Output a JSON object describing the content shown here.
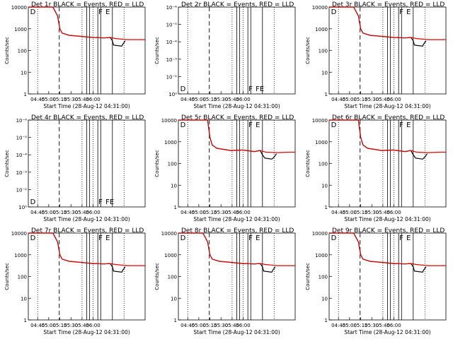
{
  "chart_data": [
    {
      "type": "line",
      "title": "Det 1r BLACK = Events, RED = LLD",
      "scale": "log",
      "ylim": [
        1,
        10000
      ],
      "ylabel": "Counts/sec",
      "xlabel": "Start Time (28-Aug-12 04:31:00)",
      "xticks": [
        "04:45",
        "05:00",
        "05:15",
        "05:30",
        "05:45",
        "06:00"
      ],
      "markers": [
        "D",
        "F",
        "E"
      ],
      "series": [
        {
          "name": "Events",
          "color": "#000000",
          "profile": "high"
        },
        {
          "name": "LLD",
          "color": "#e00000",
          "profile": "high"
        }
      ]
    },
    {
      "type": "line",
      "title": "Det 2r BLACK = Events, RED = LLD",
      "scale": "tiny",
      "ylim": [
        0,
        1e-06
      ],
      "ylabel": "Counts/sec",
      "xlabel": "Start Time (28-Aug-12 04:31:00)",
      "xticks": [
        "04:45",
        "05:00",
        "05:15",
        "05:30",
        "05:45",
        "06:00"
      ],
      "markers": [
        "D",
        "F",
        "F",
        "E"
      ],
      "series": []
    },
    {
      "type": "line",
      "title": "Det 3r BLACK = Events, RED = LLD",
      "scale": "log",
      "ylim": [
        1,
        10000
      ],
      "ylabel": "Counts/sec",
      "xlabel": "Start Time (28-Aug-12 04:31:00)",
      "xticks": [
        "04:45",
        "05:00",
        "05:15",
        "05:30",
        "05:45",
        "06:00"
      ],
      "markers": [
        "D",
        "F",
        "E"
      ],
      "series": [
        {
          "name": "Events",
          "color": "#000000",
          "profile": "high"
        },
        {
          "name": "LLD",
          "color": "#e00000",
          "profile": "high"
        }
      ]
    },
    {
      "type": "line",
      "title": "Det 4r BLACK = Events, RED = LLD",
      "scale": "tiny",
      "ylim": [
        0,
        1e-06
      ],
      "ylabel": "Counts/sec",
      "xlabel": "Start Time (28-Aug-12 04:31:00)",
      "xticks": [
        "04:45",
        "05:00",
        "05:15",
        "05:30",
        "05:45",
        "06:00"
      ],
      "markers": [
        "D",
        "F",
        "F",
        "E"
      ],
      "series": []
    },
    {
      "type": "line",
      "title": "Det 5r BLACK = Events, RED = LLD",
      "scale": "log",
      "ylim": [
        1,
        10000
      ],
      "ylabel": "Counts/sec",
      "xlabel": "Start Time (28-Aug-12 04:31:00)",
      "xticks": [
        "04:45",
        "05:00",
        "05:15",
        "05:30",
        "05:45",
        "06:00"
      ],
      "markers": [
        "D",
        "F",
        "E"
      ],
      "series": [
        {
          "name": "Events",
          "color": "#000000",
          "profile": "late"
        },
        {
          "name": "LLD",
          "color": "#e00000",
          "profile": "late"
        }
      ]
    },
    {
      "type": "line",
      "title": "Det 6r BLACK = Events, RED = LLD",
      "scale": "log",
      "ylim": [
        1,
        10000
      ],
      "ylabel": "Counts/sec",
      "xlabel": "Start Time (28-Aug-12 04:31:00)",
      "xticks": [
        "04:45",
        "05:00",
        "05:15",
        "05:30",
        "05:45",
        "06:00"
      ],
      "markers": [
        "D",
        "F",
        "E"
      ],
      "series": [
        {
          "name": "Events",
          "color": "#000000",
          "profile": "late"
        },
        {
          "name": "LLD",
          "color": "#e00000",
          "profile": "late"
        }
      ]
    },
    {
      "type": "line",
      "title": "Det 7r BLACK = Events, RED = LLD",
      "scale": "log",
      "ylim": [
        1,
        10000
      ],
      "ylabel": "Counts/sec",
      "xlabel": "Start Time (28-Aug-12 04:31:00)",
      "xticks": [
        "04:45",
        "05:00",
        "05:15",
        "05:30",
        "05:45",
        "06:00"
      ],
      "markers": [
        "D",
        "F",
        "E"
      ],
      "series": [
        {
          "name": "Events",
          "color": "#000000",
          "profile": "high"
        },
        {
          "name": "LLD",
          "color": "#e00000",
          "profile": "high"
        }
      ]
    },
    {
      "type": "line",
      "title": "Det 8r BLACK = Events, RED = LLD",
      "scale": "log",
      "ylim": [
        1,
        10000
      ],
      "ylabel": "Counts/sec",
      "xlabel": "Start Time (28-Aug-12 04:31:00)",
      "xticks": [
        "04:45",
        "05:00",
        "05:15",
        "05:30",
        "05:45",
        "06:00"
      ],
      "markers": [
        "D",
        "F",
        "E"
      ],
      "series": [
        {
          "name": "Events",
          "color": "#000000",
          "profile": "high"
        },
        {
          "name": "LLD",
          "color": "#e00000",
          "profile": "high"
        }
      ]
    },
    {
      "type": "line",
      "title": "Det 9r BLACK = Events, RED = LLD",
      "scale": "log",
      "ylim": [
        1,
        10000
      ],
      "ylabel": "Counts/sec",
      "xlabel": "Start Time (28-Aug-12 04:31:00)",
      "xticks": [
        "04:45",
        "05:00",
        "05:15",
        "05:30",
        "05:45",
        "06:00"
      ],
      "markers": [
        "D",
        "F",
        "E"
      ],
      "series": [
        {
          "name": "Events",
          "color": "#000000",
          "profile": "high"
        },
        {
          "name": "LLD",
          "color": "#e00000",
          "profile": "high"
        }
      ]
    }
  ],
  "tick_labels": {
    "log": [
      "1",
      "10",
      "100",
      "1000",
      "10000"
    ],
    "tiny": [
      "10⁰",
      "10⁻²",
      "10⁻³",
      "10⁻⁴",
      "10⁻⁵",
      "10⁻⁶"
    ]
  }
}
